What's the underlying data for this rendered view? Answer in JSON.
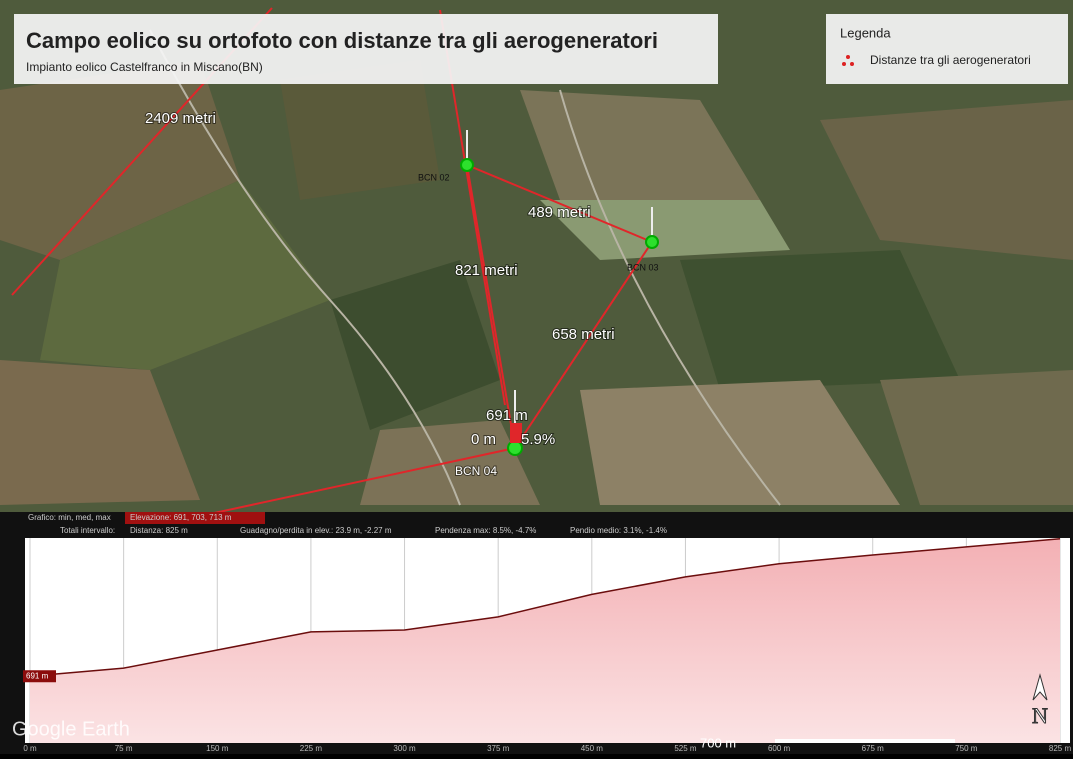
{
  "header": {
    "title": "Campo eolico su ortofoto con distanze tra gli aerogeneratori",
    "subtitle": "Impianto eolico Castelfranco in Miscano(BN)"
  },
  "legend": {
    "title": "Legenda",
    "entry": "Distanze tra gli aerogeneratori"
  },
  "map_labels": {
    "distances": [
      "2409 metri",
      "489 metri",
      "821 metri",
      "658 metri"
    ],
    "turbines": [
      "BCN 02",
      "BCN 03",
      "BCN 04"
    ],
    "cursor": [
      "691 m",
      "0 m",
      "5.9%"
    ]
  },
  "profile_info": {
    "row1": [
      "Grafico: min, med, max",
      "Elevazione: 691, 703, 713 m"
    ],
    "row2": [
      "Totali intervallo:",
      "Distanza: 825 m",
      "Guadagno/perdita in elev.: 23.9 m, -2.27 m",
      "Pendenza max: 8.5%, -4.7%",
      "Pendio medio: 3.1%, -1.4%"
    ]
  },
  "profile": {
    "x": [
      0,
      75,
      150,
      225,
      300,
      375,
      450,
      525,
      600,
      675,
      750,
      825
    ],
    "elevation": [
      691,
      692.3,
      695.2,
      698.1,
      698.4,
      700.5,
      704.1,
      706.9,
      709.0,
      710.4,
      711.7,
      713.0
    ],
    "xlim": [
      0,
      825
    ],
    "ylim": [
      680,
      716
    ],
    "xticks": [
      {
        "value": 0,
        "label": "0 m"
      },
      {
        "value": 75,
        "label": "75 m"
      },
      {
        "value": 150,
        "label": "150 m"
      },
      {
        "value": 225,
        "label": "225 m"
      },
      {
        "value": 300,
        "label": "300 m"
      },
      {
        "value": 375,
        "label": "375 m"
      },
      {
        "value": 450,
        "label": "450 m"
      },
      {
        "value": 525,
        "label": "525 m"
      },
      {
        "value": 600,
        "label": "600 m"
      },
      {
        "value": 675,
        "label": "675 m"
      },
      {
        "value": 750,
        "label": "750 m"
      },
      {
        "value": 825,
        "label": "825 m"
      }
    ],
    "yticks": [
      {
        "value": 691,
        "label": "691 m"
      }
    ]
  },
  "branding": {
    "logo": "Google Earth",
    "north": "N",
    "scale": "700 m"
  }
}
